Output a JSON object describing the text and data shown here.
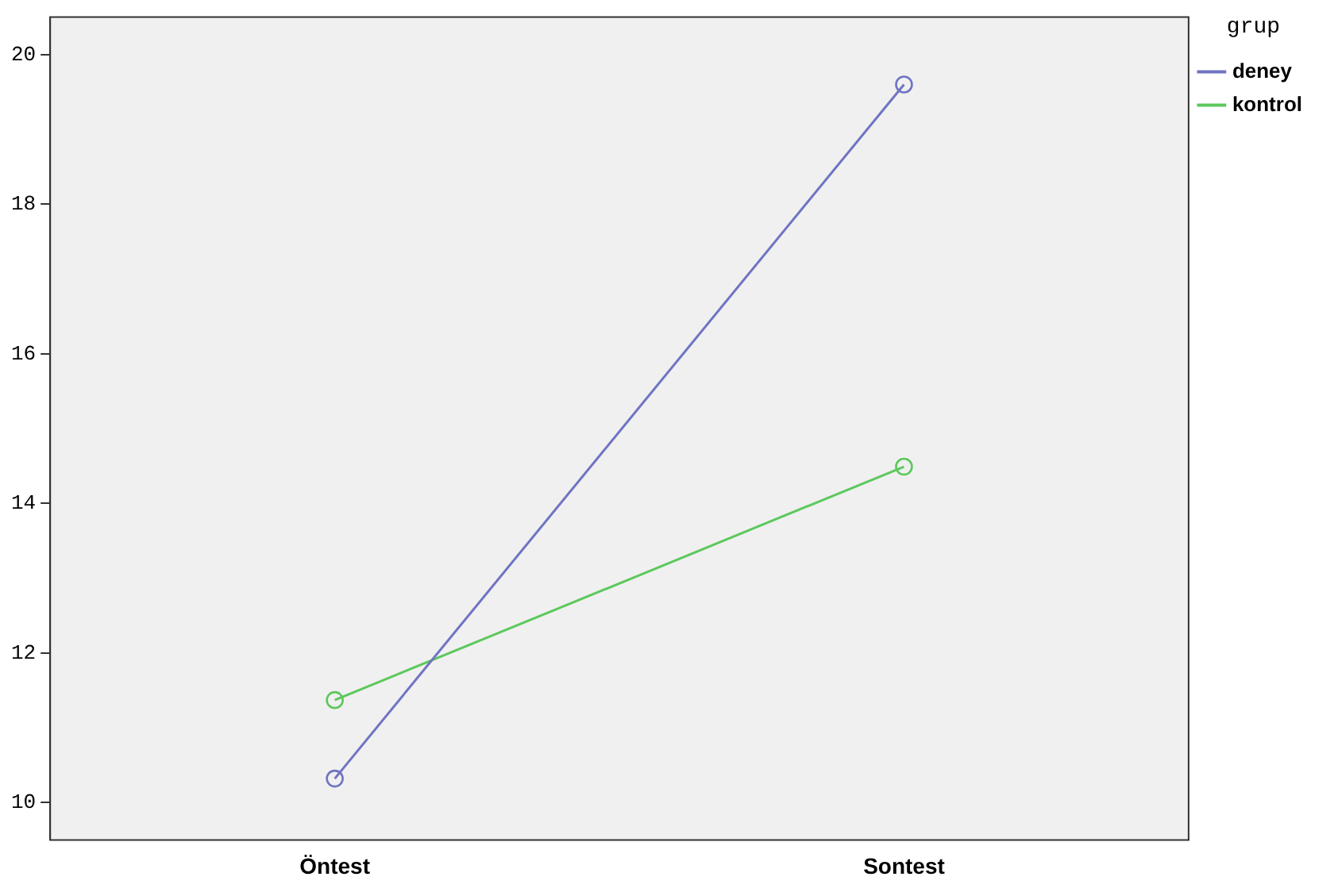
{
  "chart_data": {
    "type": "line",
    "categories": [
      "Öntest",
      "Sontest"
    ],
    "series": [
      {
        "name": "deney",
        "color": "#6f74c2",
        "values": [
          10.32,
          19.6
        ]
      },
      {
        "name": "kontrol",
        "color": "#5cc85c",
        "values": [
          11.37,
          14.49
        ]
      }
    ],
    "ylim": [
      9.5,
      20.5
    ],
    "yticks": [
      10,
      12,
      14,
      16,
      18,
      20
    ],
    "legend_title": "grup",
    "legend": "top right",
    "grid": false,
    "marker": "circle",
    "line_style": "solid"
  }
}
